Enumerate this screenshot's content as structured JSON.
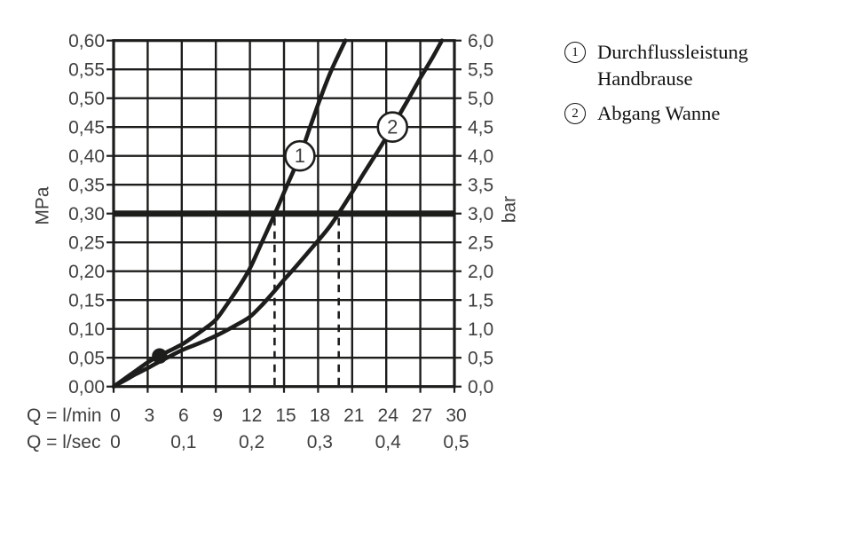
{
  "colors": {
    "line": "#1d1d1b",
    "text": "#3f3f3f",
    "background": "#ffffff"
  },
  "chart_data": {
    "type": "line",
    "title": "",
    "grid": true,
    "x_axis": {
      "unit_row1": "Q = l/min",
      "unit_row2": "Q = l/sec",
      "range_lmin": [
        0,
        30
      ],
      "ticks_lmin": {
        "values": [
          0,
          3,
          6,
          9,
          12,
          15,
          18,
          21,
          24,
          27,
          30
        ],
        "labels": [
          "0",
          "3",
          "6",
          "9",
          "12",
          "15",
          "18",
          "21",
          "24",
          "27",
          "30"
        ]
      },
      "ticks_lsec": {
        "values": [
          0,
          6,
          12,
          18,
          24,
          30
        ],
        "labels": [
          "0",
          "0,1",
          "0,2",
          "0,3",
          "0,4",
          "0,5"
        ]
      }
    },
    "y_axis_left": {
      "unit": "MPa",
      "range": [
        0,
        0.6
      ],
      "tick_values": [
        0,
        0.05,
        0.1,
        0.15,
        0.2,
        0.25,
        0.3,
        0.35,
        0.4,
        0.45,
        0.5,
        0.55,
        0.6
      ],
      "tick_labels": [
        "0,00",
        "0,05",
        "0,10",
        "0,15",
        "0,20",
        "0,25",
        "0,30",
        "0,35",
        "0,40",
        "0,45",
        "0,50",
        "0,55",
        "0,60"
      ]
    },
    "y_axis_right": {
      "unit": "bar",
      "range": [
        0,
        6
      ],
      "tick_labels": [
        "0,0",
        "0,5",
        "1,0",
        "1,5",
        "2,0",
        "2,5",
        "3,0",
        "3,5",
        "4,0",
        "4,5",
        "5,0",
        "5,5",
        "6,0"
      ]
    },
    "series": [
      {
        "id": "1",
        "name": "Durchflussleistung Handbrause",
        "marker_label": "1",
        "marker_at": {
          "q": 16.4,
          "mpa": 0.4
        },
        "points_q_mpa": [
          [
            0,
            0
          ],
          [
            1,
            0.014
          ],
          [
            2,
            0.028
          ],
          [
            3,
            0.042
          ],
          [
            4,
            0.053
          ],
          [
            5,
            0.063
          ],
          [
            6,
            0.073
          ],
          [
            7,
            0.086
          ],
          [
            8,
            0.1
          ],
          [
            9,
            0.116
          ],
          [
            10,
            0.143
          ],
          [
            11,
            0.172
          ],
          [
            12,
            0.205
          ],
          [
            13,
            0.248
          ],
          [
            14.2,
            0.3
          ],
          [
            15.3,
            0.35
          ],
          [
            16.4,
            0.4
          ],
          [
            17.3,
            0.45
          ],
          [
            18.2,
            0.5
          ],
          [
            19.2,
            0.55
          ],
          [
            20.4,
            0.6
          ]
        ]
      },
      {
        "id": "2",
        "name": "Abgang Wanne",
        "marker_label": "2",
        "marker_at": {
          "q": 24.55,
          "mpa": 0.45
        },
        "points_q_mpa": [
          [
            0,
            0
          ],
          [
            1,
            0.011
          ],
          [
            2,
            0.022
          ],
          [
            3,
            0.032
          ],
          [
            4,
            0.043
          ],
          [
            5,
            0.053
          ],
          [
            6,
            0.063
          ],
          [
            7,
            0.071
          ],
          [
            8,
            0.079
          ],
          [
            9,
            0.088
          ],
          [
            10,
            0.098
          ],
          [
            11,
            0.109
          ],
          [
            12,
            0.121
          ],
          [
            13,
            0.14
          ],
          [
            14,
            0.162
          ],
          [
            15,
            0.185
          ],
          [
            16,
            0.207
          ],
          [
            17,
            0.23
          ],
          [
            18,
            0.253
          ],
          [
            19,
            0.277
          ],
          [
            19.8,
            0.3
          ],
          [
            21,
            0.337
          ],
          [
            22,
            0.369
          ],
          [
            23,
            0.4
          ],
          [
            24,
            0.432
          ],
          [
            25,
            0.466
          ],
          [
            26,
            0.5
          ],
          [
            27,
            0.535
          ],
          [
            28,
            0.568
          ],
          [
            28.9,
            0.6
          ]
        ]
      }
    ],
    "reference_line_mpa": 0.3,
    "reference_line_bar": 3.0,
    "dashed_guides_q": [
      14.17,
      19.82
    ],
    "operating_point": {
      "q": 4.05,
      "mpa": 0.053
    }
  },
  "legend": {
    "items": [
      {
        "num": "1",
        "lines": [
          "Durchflussleistung",
          "Handbrause"
        ]
      },
      {
        "num": "2",
        "lines": [
          "Abgang Wanne"
        ]
      }
    ]
  }
}
